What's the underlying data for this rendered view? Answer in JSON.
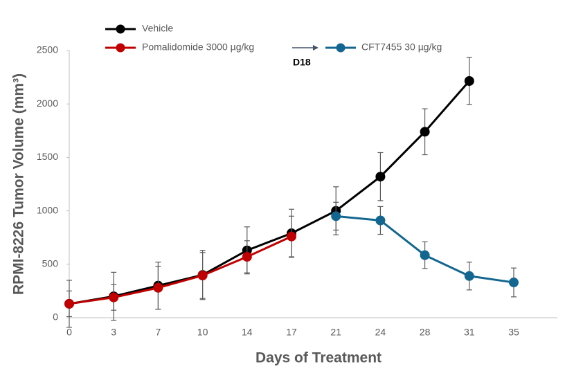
{
  "chart_data": {
    "type": "line",
    "xlabel": "Days of Treatment",
    "ylabel": "RPMI-8226 Tumor Volume (mm³)",
    "categories": [
      "0",
      "3",
      "7",
      "10",
      "14",
      "17",
      "21",
      "24",
      "28",
      "31",
      "35"
    ],
    "ylim": [
      0,
      2500
    ],
    "yticks": [
      0,
      500,
      1000,
      1500,
      2000,
      2500
    ],
    "grid": false,
    "legend": "top",
    "annotation": "D18",
    "series": [
      {
        "name": "Vehicle",
        "color": "#000000",
        "values": [
          130,
          200,
          300,
          400,
          630,
          790,
          1000,
          1320,
          1740,
          2215,
          null
        ],
        "errors": [
          220,
          225,
          220,
          230,
          220,
          225,
          225,
          225,
          215,
          220,
          null
        ]
      },
      {
        "name": "Pomalidomide 3000 µg/kg",
        "color": "#c00000",
        "values": [
          130,
          190,
          280,
          395,
          570,
          760,
          null,
          null,
          null,
          null,
          null
        ],
        "errors": [
          120,
          120,
          200,
          215,
          150,
          190,
          null,
          null,
          null,
          null,
          null
        ]
      },
      {
        "name": "CFT7455 30 µg/kg",
        "color": "#136690",
        "values": [
          null,
          null,
          null,
          null,
          null,
          null,
          950,
          910,
          585,
          390,
          330
        ],
        "errors": [
          null,
          null,
          null,
          null,
          null,
          null,
          130,
          130,
          125,
          130,
          135
        ]
      }
    ]
  }
}
